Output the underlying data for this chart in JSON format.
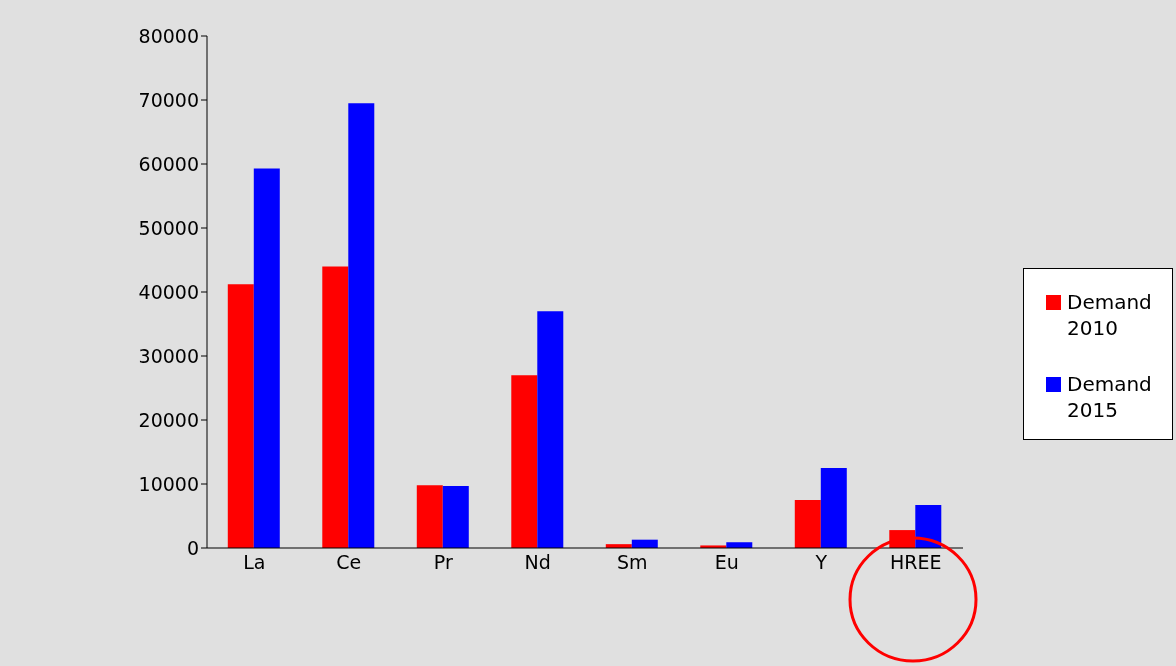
{
  "chart_data": {
    "type": "bar",
    "categories": [
      "La",
      "Ce",
      "Pr",
      "Nd",
      "Sm",
      "Eu",
      "Y",
      "HREE"
    ],
    "series": [
      {
        "name": "Demand 2010",
        "color": "#ff0000",
        "values": [
          41200,
          44000,
          9800,
          27000,
          600,
          400,
          7500,
          2800
        ]
      },
      {
        "name": "Demand 2015",
        "color": "#0000ff",
        "values": [
          59300,
          69500,
          9700,
          37000,
          1300,
          900,
          12500,
          6700
        ]
      }
    ],
    "ylim": [
      0,
      80000
    ],
    "yticks": [
      0,
      10000,
      20000,
      30000,
      40000,
      50000,
      60000,
      70000,
      80000
    ],
    "grid": false,
    "legend": "right"
  }
}
